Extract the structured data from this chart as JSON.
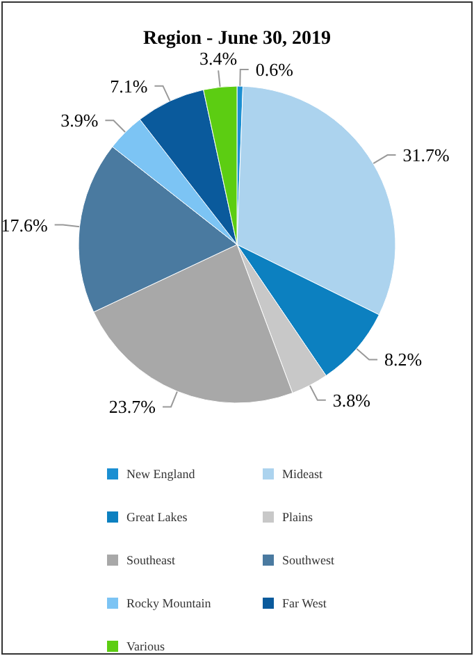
{
  "chart_data": {
    "type": "pie",
    "title": "Region - June 30, 2019",
    "categories": [
      "New England",
      "Mideast",
      "Great Lakes",
      "Plains",
      "Southeast",
      "Southwest",
      "Rocky Mountain",
      "Far West",
      "Various"
    ],
    "values": [
      0.6,
      31.7,
      8.2,
      3.8,
      23.7,
      17.6,
      3.9,
      7.1,
      3.4
    ],
    "colors": [
      "#1b8fd2",
      "#acd3ee",
      "#0c80c0",
      "#c8c8c8",
      "#a8a8a8",
      "#4a7aa0",
      "#7cc4f4",
      "#0a5a9c",
      "#5ccd12"
    ],
    "value_labels": [
      "0.6%",
      "31.7%",
      "8.2%",
      "3.8%",
      "23.7%",
      "17.6%",
      "3.9%",
      "7.1%",
      "3.4%"
    ],
    "data_labels": true,
    "legend": "bottom"
  }
}
